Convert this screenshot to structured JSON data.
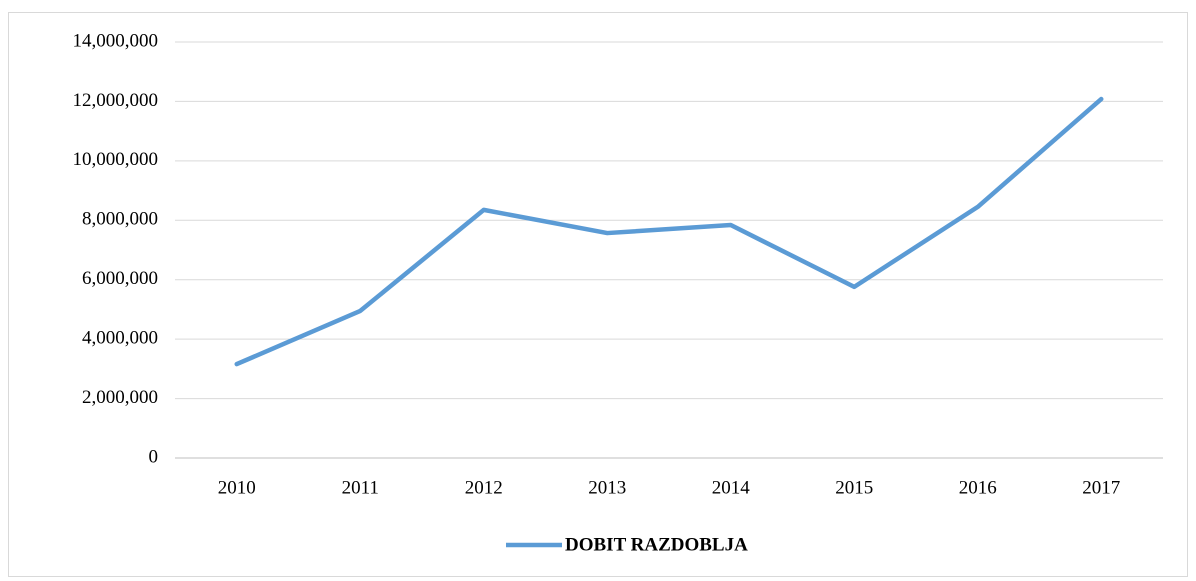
{
  "chart_data": {
    "type": "line",
    "categories": [
      "2010",
      "2011",
      "2012",
      "2013",
      "2014",
      "2015",
      "2016",
      "2017"
    ],
    "series": [
      {
        "name": "DOBIT RAZDOBLJA",
        "color": "#5b9bd5",
        "values": [
          3160000,
          4950000,
          8350000,
          7570000,
          7840000,
          5760000,
          8450000,
          12080000
        ]
      }
    ],
    "ylim": [
      0,
      14000000
    ],
    "yticks": [
      0,
      {
        "value": 2000000,
        "label": "2,000,000"
      },
      {
        "value": 4000000,
        "label": "4,000,000"
      },
      {
        "value": 6000000,
        "label": "6,000,000"
      },
      {
        "value": 8000000,
        "label": "8,000,000"
      },
      {
        "value": 10000000,
        "label": "10,000,000"
      },
      {
        "value": 12000000,
        "label": "12,000,000"
      },
      {
        "value": 14000000,
        "label": "14,000,000"
      }
    ],
    "grid": true,
    "legend": "bottom"
  }
}
